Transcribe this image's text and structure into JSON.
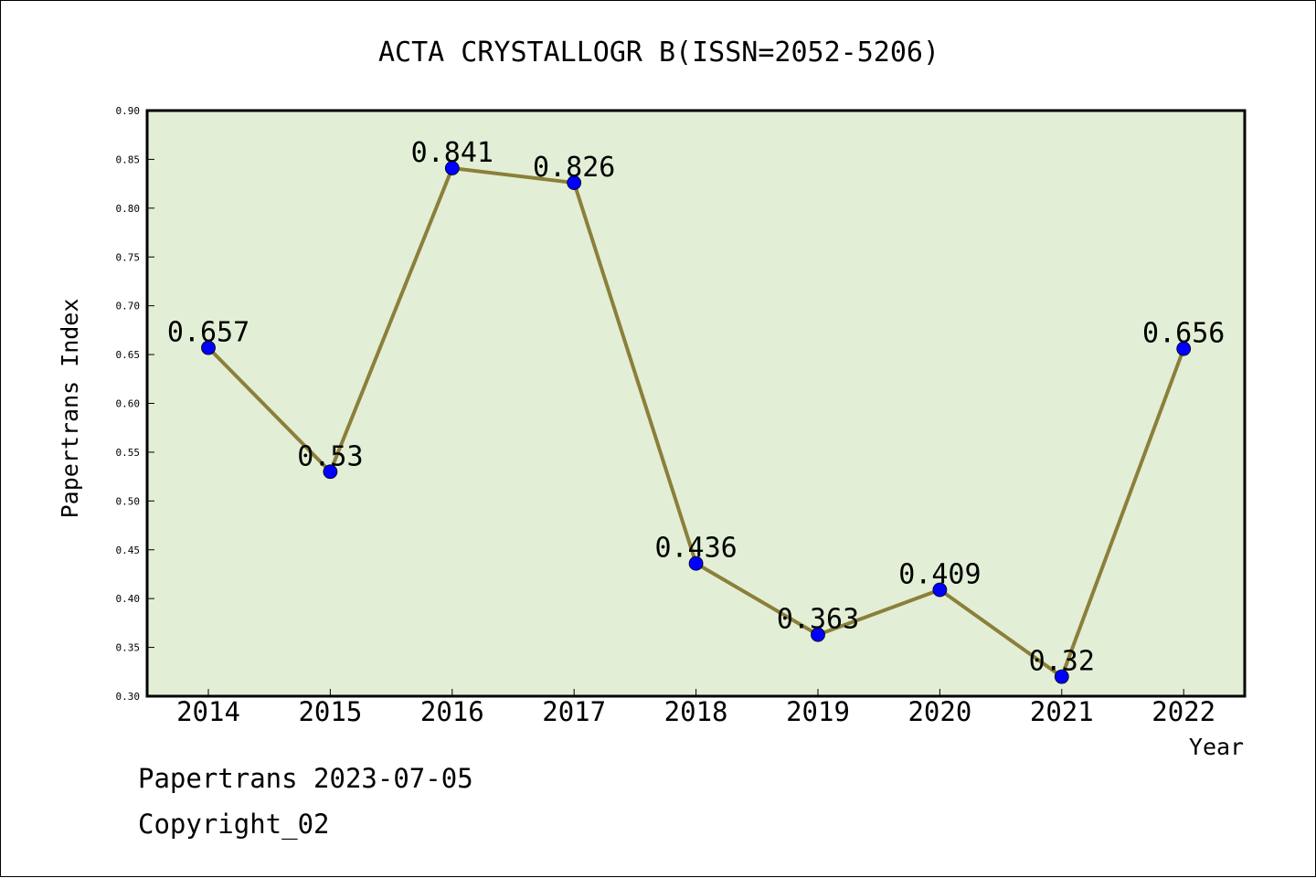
{
  "chart_data": {
    "type": "line",
    "title": "ACTA CRYSTALLOGR B(ISSN=2052-5206)",
    "xlabel": "Year",
    "ylabel": "Papertrans Index",
    "categories": [
      "2014",
      "2015",
      "2016",
      "2017",
      "2018",
      "2019",
      "2020",
      "2021",
      "2022"
    ],
    "values": [
      0.657,
      0.53,
      0.841,
      0.826,
      0.436,
      0.363,
      0.409,
      0.32,
      0.656
    ],
    "data_labels": [
      "0.657",
      "0.53",
      "0.841",
      "0.826",
      "0.436",
      "0.363",
      "0.409",
      "0.32",
      "0.656"
    ],
    "ylim": [
      0.3,
      0.9
    ],
    "yticks": [
      "0.30",
      "0.35",
      "0.40",
      "0.45",
      "0.50",
      "0.55",
      "0.60",
      "0.65",
      "0.70",
      "0.75",
      "0.80",
      "0.85",
      "0.90"
    ],
    "grid": false,
    "colors": {
      "plot_background": "#e2efd6",
      "line": "#8b7f3a",
      "marker": "#0000ff"
    }
  },
  "footer": {
    "date_line": "Papertrans 2023-07-05",
    "copyright": "Copyright_02"
  }
}
